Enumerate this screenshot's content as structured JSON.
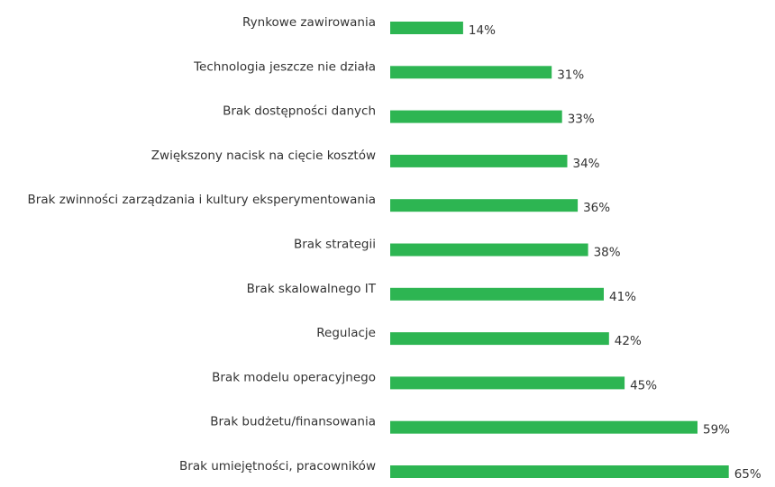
{
  "chart_data": {
    "type": "bar",
    "orientation": "horizontal",
    "categories": [
      "Rynkowe zawirowania",
      "Technologia jeszcze nie działa",
      "Brak dostępności danych",
      "Zwiększony nacisk na cięcie kosztów",
      "Brak zwinności zarządzania i kultury eksperymentowania",
      "Brak strategii",
      "Brak skalowalnego IT",
      "Regulacje",
      "Brak modelu operacyjnego",
      "Brak budżetu/finansowania",
      "Brak umiejętności, pracowników"
    ],
    "values": [
      14,
      31,
      33,
      34,
      36,
      38,
      41,
      42,
      45,
      59,
      65
    ],
    "value_labels": [
      "14%",
      "31%",
      "33%",
      "34%",
      "36%",
      "38%",
      "41%",
      "42%",
      "45%",
      "59%",
      "65%"
    ],
    "unit": "%",
    "xlim": [
      0,
      65
    ],
    "grid": false,
    "legend": "none",
    "bar_color": "#2db552",
    "text_color": "#333333"
  }
}
